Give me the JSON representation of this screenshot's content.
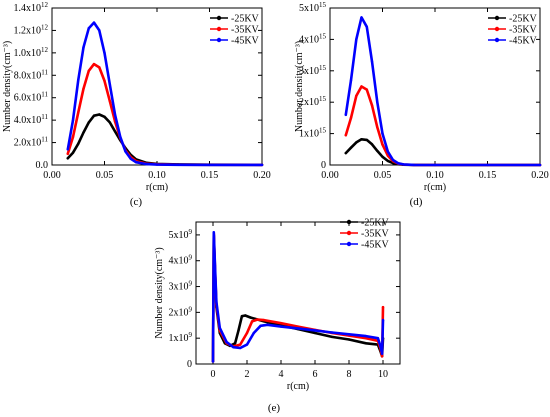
{
  "chart_data": [
    {
      "type": "line",
      "panel_label": "(c)",
      "xlabel": "r(cm)",
      "ylabel": "Number density(cm⁻³)",
      "xlim": [
        0.0,
        0.2
      ],
      "ylim": [
        0,
        1400000000000.0
      ],
      "x_ticks": [
        0.0,
        0.05,
        0.1,
        0.15,
        0.2
      ],
      "x_tick_labels": [
        "0.00",
        "0.05",
        "0.10",
        "0.15",
        "0.20"
      ],
      "y_ticks": [
        0,
        200000000000.0,
        400000000000.0,
        600000000000.0,
        800000000000.0,
        1000000000000.0,
        1200000000000.0,
        1400000000000.0
      ],
      "y_tick_labels": [
        {
          "m": "0.0",
          "e": ""
        },
        {
          "m": "2.0x10",
          "e": "11"
        },
        {
          "m": "4.0x10",
          "e": "11"
        },
        {
          "m": "6.0x10",
          "e": "11"
        },
        {
          "m": "8.0x10",
          "e": "11"
        },
        {
          "m": "1.0x10",
          "e": "12"
        },
        {
          "m": "1.2x10",
          "e": "12"
        },
        {
          "m": "1.4x10",
          "e": "12"
        }
      ],
      "legend_position": "top-right",
      "series": [
        {
          "name": "-25KV",
          "color": "#000000",
          "x": [
            0.015,
            0.02,
            0.025,
            0.03,
            0.035,
            0.04,
            0.045,
            0.05,
            0.055,
            0.06,
            0.065,
            0.07,
            0.075,
            0.08,
            0.09,
            0.1,
            0.12,
            0.15,
            0.2
          ],
          "y": [
            60000000000.0,
            110000000000.0,
            190000000000.0,
            290000000000.0,
            380000000000.0,
            440000000000.0,
            450000000000.0,
            430000000000.0,
            380000000000.0,
            300000000000.0,
            220000000000.0,
            150000000000.0,
            90000000000.0,
            50000000000.0,
            20000000000.0,
            10000000000.0,
            5000000000.0,
            3000000000.0,
            2000000000.0
          ]
        },
        {
          "name": "-35KV",
          "color": "#ff0000",
          "x": [
            0.015,
            0.02,
            0.025,
            0.03,
            0.035,
            0.04,
            0.045,
            0.05,
            0.055,
            0.06,
            0.065,
            0.07,
            0.075,
            0.08,
            0.09,
            0.1,
            0.12,
            0.15,
            0.2
          ],
          "y": [
            100000000000.0,
            250000000000.0,
            470000000000.0,
            680000000000.0,
            840000000000.0,
            900000000000.0,
            870000000000.0,
            750000000000.0,
            570000000000.0,
            390000000000.0,
            240000000000.0,
            130000000000.0,
            70000000000.0,
            35000000000.0,
            12000000000.0,
            6000000000.0,
            3000000000.0,
            2000000000.0,
            1000000000.0
          ]
        },
        {
          "name": "-45KV",
          "color": "#0000ff",
          "x": [
            0.015,
            0.02,
            0.025,
            0.03,
            0.035,
            0.04,
            0.045,
            0.05,
            0.055,
            0.06,
            0.065,
            0.07,
            0.075,
            0.08,
            0.09,
            0.1,
            0.12,
            0.15,
            0.2
          ],
          "y": [
            140000000000.0,
            400000000000.0,
            760000000000.0,
            1050000000000.0,
            1220000000000.0,
            1270000000000.0,
            1200000000000.0,
            1000000000000.0,
            720000000000.0,
            450000000000.0,
            250000000000.0,
            120000000000.0,
            55000000000.0,
            25000000000.0,
            8000000000.0,
            4000000000.0,
            2000000000.0,
            1000000000.0,
            1000000000.0
          ]
        }
      ]
    },
    {
      "type": "line",
      "panel_label": "(d)",
      "xlabel": "r(cm)",
      "ylabel": "Number density(cm⁻³)",
      "xlim": [
        0.0,
        0.2
      ],
      "ylim": [
        0,
        5000000000000000.0
      ],
      "x_ticks": [
        0.0,
        0.05,
        0.1,
        0.15,
        0.2
      ],
      "x_tick_labels": [
        "0.00",
        "0.05",
        "0.10",
        "0.15",
        "0.20"
      ],
      "y_ticks": [
        0,
        1000000000000000.0,
        2000000000000000.0,
        3000000000000000.0,
        4000000000000000.0,
        5000000000000000.0
      ],
      "y_tick_labels": [
        {
          "m": "0",
          "e": ""
        },
        {
          "m": "1x10",
          "e": "15"
        },
        {
          "m": "2x10",
          "e": "15"
        },
        {
          "m": "3x10",
          "e": "15"
        },
        {
          "m": "4x10",
          "e": "15"
        },
        {
          "m": "5x10",
          "e": "15"
        }
      ],
      "legend_position": "top-right",
      "series": [
        {
          "name": "-25KV",
          "color": "#000000",
          "x": [
            0.015,
            0.02,
            0.025,
            0.03,
            0.035,
            0.04,
            0.045,
            0.05,
            0.055,
            0.06,
            0.065,
            0.07,
            0.08,
            0.1,
            0.15,
            0.2
          ],
          "y": [
            380000000000000.0,
            550000000000000.0,
            720000000000000.0,
            820000000000000.0,
            800000000000000.0,
            660000000000000.0,
            450000000000000.0,
            260000000000000.0,
            130000000000000.0,
            60000000000000.0,
            25000000000000.0,
            10000000000000.0,
            3000000000000.0,
            1000000000000.0,
            500000000000.0,
            200000000000.0
          ]
        },
        {
          "name": "-35KV",
          "color": "#ff0000",
          "x": [
            0.015,
            0.02,
            0.025,
            0.03,
            0.035,
            0.04,
            0.045,
            0.05,
            0.055,
            0.06,
            0.065,
            0.07,
            0.08,
            0.1,
            0.15,
            0.2
          ],
          "y": [
            950000000000000.0,
            1500000000000000.0,
            2200000000000000.0,
            2500000000000000.0,
            2400000000000000.0,
            1900000000000000.0,
            1200000000000000.0,
            650000000000000.0,
            300000000000000.0,
            120000000000000.0,
            45000000000000.0,
            16000000000000.0,
            4000000000000.0,
            1000000000000.0,
            500000000000.0,
            200000000000.0
          ]
        },
        {
          "name": "-45KV",
          "color": "#0000ff",
          "x": [
            0.015,
            0.02,
            0.025,
            0.03,
            0.035,
            0.04,
            0.045,
            0.05,
            0.055,
            0.06,
            0.065,
            0.07,
            0.08,
            0.1,
            0.15,
            0.2
          ],
          "y": [
            1600000000000000.0,
            2700000000000000.0,
            4000000000000000.0,
            4700000000000000.0,
            4400000000000000.0,
            3300000000000000.0,
            2000000000000000.0,
            1000000000000000.0,
            430000000000000.0,
            160000000000000.0,
            55000000000000.0,
            18000000000000.0,
            4000000000000.0,
            1000000000000.0,
            500000000000.0,
            200000000000.0
          ]
        }
      ]
    },
    {
      "type": "line",
      "panel_label": "(e)",
      "xlabel": "r(cm)",
      "ylabel": "Number density(cm⁻³)",
      "xlim": [
        -1,
        11
      ],
      "ylim": [
        0,
        5500000000.0
      ],
      "x_ticks": [
        0,
        2,
        4,
        6,
        8,
        10
      ],
      "x_tick_labels": [
        "0",
        "2",
        "4",
        "6",
        "8",
        "10"
      ],
      "y_ticks": [
        0,
        1000000000.0,
        2000000000.0,
        3000000000.0,
        4000000000.0,
        5000000000.0
      ],
      "y_tick_labels": [
        {
          "m": "0",
          "e": ""
        },
        {
          "m": "1x10",
          "e": "9"
        },
        {
          "m": "2x10",
          "e": "9"
        },
        {
          "m": "3x10",
          "e": "9"
        },
        {
          "m": "4x10",
          "e": "9"
        },
        {
          "m": "5x10",
          "e": "9"
        }
      ],
      "legend_position": "top-right",
      "series": [
        {
          "name": "-25KV",
          "color": "#000000",
          "x": [
            0.0,
            0.05,
            0.12,
            0.2,
            0.4,
            0.7,
            1.0,
            1.3,
            1.5,
            1.7,
            1.9,
            2.2,
            3,
            4,
            5,
            6,
            7,
            8,
            9,
            9.7,
            9.85,
            9.95,
            10.0
          ],
          "y": [
            100000000.0,
            5000000000.0,
            3600000000.0,
            2200000000.0,
            1200000000.0,
            800000000.0,
            700000000.0,
            800000000.0,
            1300000000.0,
            1850000000.0,
            1880000000.0,
            1800000000.0,
            1650000000.0,
            1500000000.0,
            1350000000.0,
            1200000000.0,
            1050000000.0,
            950000000.0,
            800000000.0,
            750000000.0,
            500000000.0,
            300000000.0,
            1000000000.0
          ]
        },
        {
          "name": "-35KV",
          "color": "#ff0000",
          "x": [
            0.0,
            0.05,
            0.12,
            0.2,
            0.4,
            0.8,
            1.2,
            1.6,
            2.0,
            2.3,
            2.6,
            3,
            4,
            5,
            6,
            7,
            8,
            9,
            9.7,
            9.85,
            9.95,
            10.0
          ],
          "y": [
            100000000.0,
            5050000000.0,
            3700000000.0,
            2300000000.0,
            1300000000.0,
            800000000.0,
            680000000.0,
            750000000.0,
            1200000000.0,
            1650000000.0,
            1720000000.0,
            1700000000.0,
            1580000000.0,
            1450000000.0,
            1320000000.0,
            1200000000.0,
            1100000000.0,
            1000000000.0,
            900000000.0,
            600000000.0,
            300000000.0,
            2200000000.0
          ]
        },
        {
          "name": "-45KV",
          "color": "#0000ff",
          "x": [
            0.0,
            0.05,
            0.12,
            0.2,
            0.4,
            0.8,
            1.2,
            1.6,
            2.0,
            2.4,
            2.8,
            3.2,
            4,
            5,
            6,
            7,
            8,
            9,
            9.7,
            9.85,
            9.95,
            10.0
          ],
          "y": [
            100000000.0,
            5100000000.0,
            3800000000.0,
            2400000000.0,
            1400000000.0,
            850000000.0,
            650000000.0,
            620000000.0,
            750000000.0,
            1200000000.0,
            1480000000.0,
            1520000000.0,
            1450000000.0,
            1380000000.0,
            1300000000.0,
            1220000000.0,
            1150000000.0,
            1080000000.0,
            1000000000.0,
            700000000.0,
            400000000.0,
            1700000000.0
          ]
        }
      ]
    }
  ]
}
